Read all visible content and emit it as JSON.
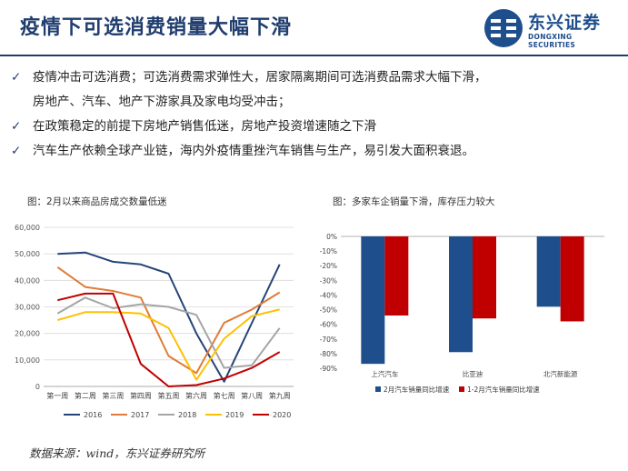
{
  "header": {
    "title": "疫情下可选消费销量大幅下滑",
    "logo_name": "东兴证券",
    "logo_en": "DONGXING SECURITIES",
    "brand_color": "#1f4e8c"
  },
  "bullets": [
    {
      "icon": "check-icon",
      "lines": [
        "疫情冲击可选消费；可选消费需求弹性大，居家隔离期间可选消费品需求大幅下滑，",
        "房地产、汽车、地产下游家具及家电均受冲击；"
      ]
    },
    {
      "icon": "check-icon",
      "lines": [
        "在政策稳定的前提下房地产销售低迷，房地产投资增速随之下滑"
      ]
    },
    {
      "icon": "check-icon",
      "lines": [
        "汽车生产依赖全球产业链，海内外疫情重挫汽车销售与生产，易引发大面积衰退。"
      ]
    }
  ],
  "captions": {
    "left": "图：2月以来商品房成交数量低迷",
    "right": "图：多家车企销量下滑，库存压力较大"
  },
  "source": "数据来源：wind，东兴证券研究所",
  "chart_data": [
    {
      "type": "line",
      "title": "",
      "categories": [
        "第一周",
        "第二周",
        "第三周",
        "第四周",
        "第五周",
        "第六周",
        "第七周",
        "第八周",
        "第九周"
      ],
      "ylim": [
        0,
        60000
      ],
      "yticks": [
        "0",
        "10,000",
        "20,000",
        "30,000",
        "40,000",
        "50,000",
        "60,000"
      ],
      "grid": true,
      "legend": "bottom",
      "series": [
        {
          "name": "2016",
          "color": "#264478",
          "values": [
            50000,
            50500,
            47000,
            46000,
            42500,
            20000,
            1800,
            24000,
            46000
          ]
        },
        {
          "name": "2017",
          "color": "#e07b39",
          "values": [
            45000,
            37500,
            36000,
            33500,
            11500,
            5000,
            24000,
            29000,
            35500
          ]
        },
        {
          "name": "2018",
          "color": "#a5a5a5",
          "values": [
            27500,
            33500,
            29500,
            31000,
            30000,
            27000,
            7000,
            8000,
            22000
          ]
        },
        {
          "name": "2019",
          "color": "#ffc000",
          "values": [
            25000,
            28000,
            28000,
            27500,
            22000,
            2500,
            18000,
            26500,
            29000
          ]
        },
        {
          "name": "2020",
          "color": "#c00000",
          "values": [
            32500,
            35000,
            35000,
            8500,
            0,
            500,
            3000,
            7000,
            13000
          ]
        }
      ]
    },
    {
      "type": "bar",
      "title": "",
      "categories": [
        "上汽汽车",
        "比亚迪",
        "北汽新能源"
      ],
      "ylim": [
        -90,
        0
      ],
      "yticks": [
        "0%",
        "-10%",
        "-20%",
        "-30%",
        "-40%",
        "-50%",
        "-60%",
        "-70%",
        "-80%",
        "-90%"
      ],
      "legend": "bottom",
      "series": [
        {
          "name": "2月汽车销量同比增速",
          "color": "#1f4e8c",
          "values": [
            -87,
            -79,
            -48
          ]
        },
        {
          "name": "1-2月汽车销量同比增速",
          "color": "#c00000",
          "values": [
            -54,
            -56,
            -58
          ]
        }
      ]
    }
  ]
}
